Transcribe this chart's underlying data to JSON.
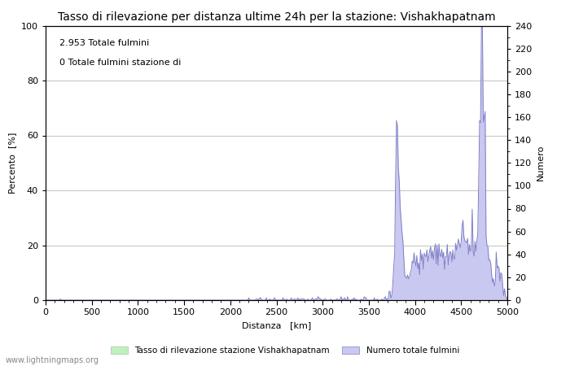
{
  "title": "Tasso di rilevazione per distanza ultime 24h per la stazione: Vishakhapatnam",
  "xlabel": "Distanza   [km]",
  "ylabel_left": "Percento  [%]",
  "ylabel_right": "Numero",
  "annotation_line1": "2.953 Totale fulmini",
  "annotation_line2": "0 Totale fulmini stazione di",
  "xlim": [
    0,
    5000
  ],
  "ylim_left": [
    0,
    100
  ],
  "ylim_right": [
    0,
    240
  ],
  "xticks": [
    0,
    500,
    1000,
    1500,
    2000,
    2500,
    3000,
    3500,
    4000,
    4500,
    5000
  ],
  "yticks_left": [
    0,
    20,
    40,
    60,
    80,
    100
  ],
  "yticks_right": [
    0,
    20,
    40,
    60,
    80,
    100,
    120,
    140,
    160,
    180,
    200,
    220,
    240
  ],
  "legend_label_green": "Tasso di rilevazione stazione Vishakhapatnam",
  "legend_label_blue": "Numero totale fulmini",
  "fill_color_blue": "#c8c8f0",
  "line_color_blue": "#8080c8",
  "fill_color_green": "#c0f0c0",
  "watermark": "www.lightningmaps.org",
  "background_color": "#ffffff",
  "grid_color": "#c8c8c8",
  "title_fontsize": 10,
  "label_fontsize": 8,
  "tick_fontsize": 8,
  "annotation_fontsize": 8
}
